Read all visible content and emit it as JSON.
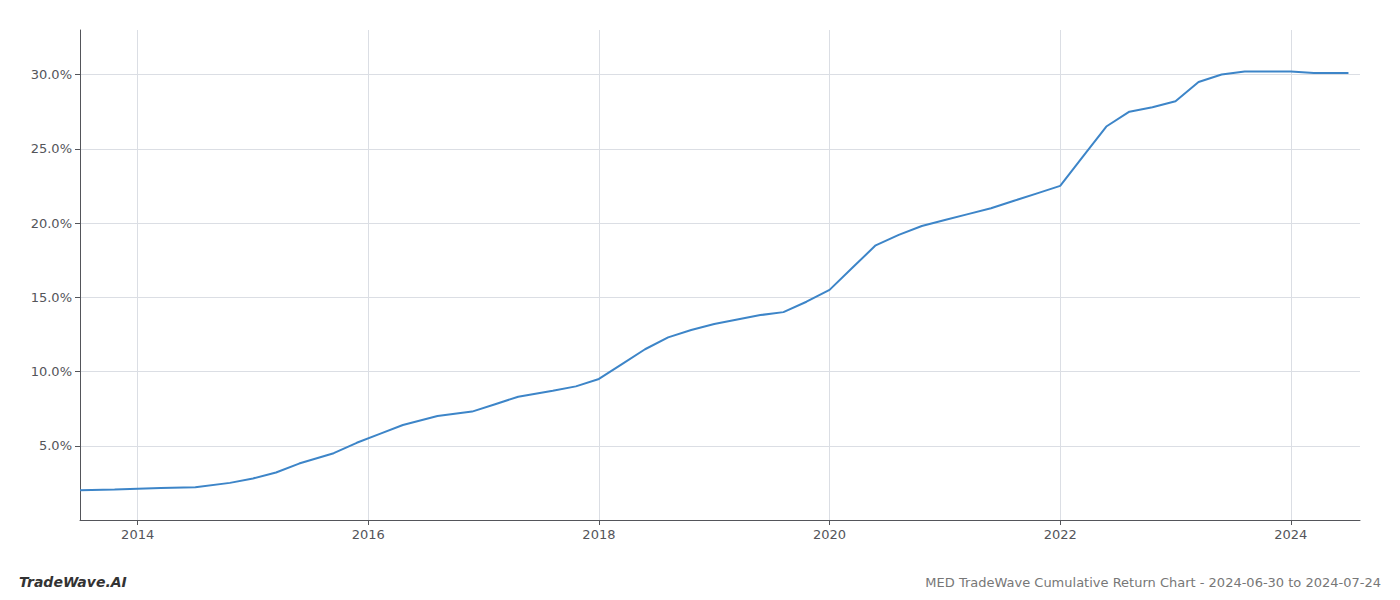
{
  "chart_data": {
    "type": "line",
    "title": "MED TradeWave Cumulative Return Chart - 2024-06-30 to 2024-07-24",
    "annotations": [
      "TradeWave.AI"
    ],
    "color": "#3d85c8",
    "x": [
      2013.5,
      2013.8,
      2014.0,
      2014.2,
      2014.5,
      2014.8,
      2015.0,
      2015.2,
      2015.4,
      2015.7,
      2015.9,
      2016.1,
      2016.3,
      2016.6,
      2016.9,
      2017.1,
      2017.3,
      2017.6,
      2017.8,
      2018.0,
      2018.2,
      2018.4,
      2018.6,
      2018.8,
      2019.0,
      2019.2,
      2019.4,
      2019.6,
      2019.8,
      2020.0,
      2020.2,
      2020.4,
      2020.6,
      2020.8,
      2021.0,
      2021.2,
      2021.4,
      2021.6,
      2021.8,
      2022.0,
      2022.2,
      2022.4,
      2022.6,
      2022.8,
      2023.0,
      2023.2,
      2023.4,
      2023.6,
      2023.8,
      2024.0,
      2024.2,
      2024.5
    ],
    "values": [
      2.0,
      2.05,
      2.1,
      2.15,
      2.2,
      2.5,
      2.8,
      3.2,
      3.8,
      4.5,
      5.2,
      5.8,
      6.4,
      7.0,
      7.3,
      7.8,
      8.3,
      8.7,
      9.0,
      9.5,
      10.5,
      11.5,
      12.3,
      12.8,
      13.2,
      13.5,
      13.8,
      14.0,
      14.7,
      15.5,
      17.0,
      18.5,
      19.2,
      19.8,
      20.2,
      20.6,
      21.0,
      21.5,
      22.0,
      22.5,
      24.5,
      26.5,
      27.5,
      27.8,
      28.2,
      29.5,
      30.0,
      30.2,
      30.2,
      30.2,
      30.1,
      30.1
    ],
    "xlim": [
      2013.5,
      2024.6
    ],
    "ylim": [
      0,
      33
    ],
    "xticks": [
      2014,
      2016,
      2018,
      2020,
      2022,
      2024
    ],
    "yticks": [
      {
        "value": 5.0,
        "label": "5.0%"
      },
      {
        "value": 10.0,
        "label": "10.0%"
      },
      {
        "value": 15.0,
        "label": "15.0%"
      },
      {
        "value": 20.0,
        "label": "20.0%"
      },
      {
        "value": 25.0,
        "label": "25.0%"
      },
      {
        "value": 30.0,
        "label": "30.0%"
      }
    ],
    "grid": true
  }
}
